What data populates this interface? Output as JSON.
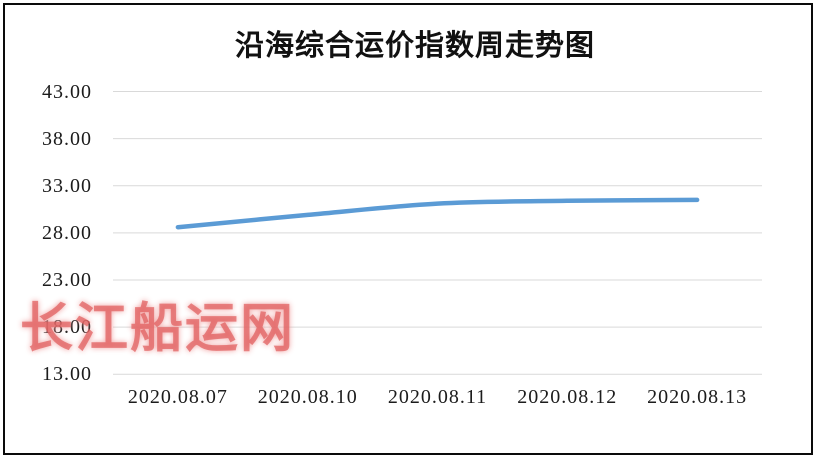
{
  "chart_data": {
    "type": "line",
    "title": "沿海综合运价指数周走势图",
    "categories": [
      "2020.08.07",
      "2020.08.10",
      "2020.08.11",
      "2020.08.12",
      "2020.08.13"
    ],
    "values": [
      28.6,
      29.9,
      31.1,
      31.4,
      31.5
    ],
    "y_ticks": [
      "43.00",
      "38.00",
      "33.00",
      "28.00",
      "23.00",
      "18.00",
      "13.00"
    ],
    "ylim": [
      13,
      43
    ],
    "ytick_step": 5,
    "xlabel": "",
    "ylabel": "",
    "grid": true,
    "legend": "none",
    "smooth": true,
    "line_color": "#5B9BD5",
    "gridline_color": "#D9D9D9"
  },
  "watermark": {
    "text": "长江船运网",
    "color": "#DF5A5A"
  }
}
